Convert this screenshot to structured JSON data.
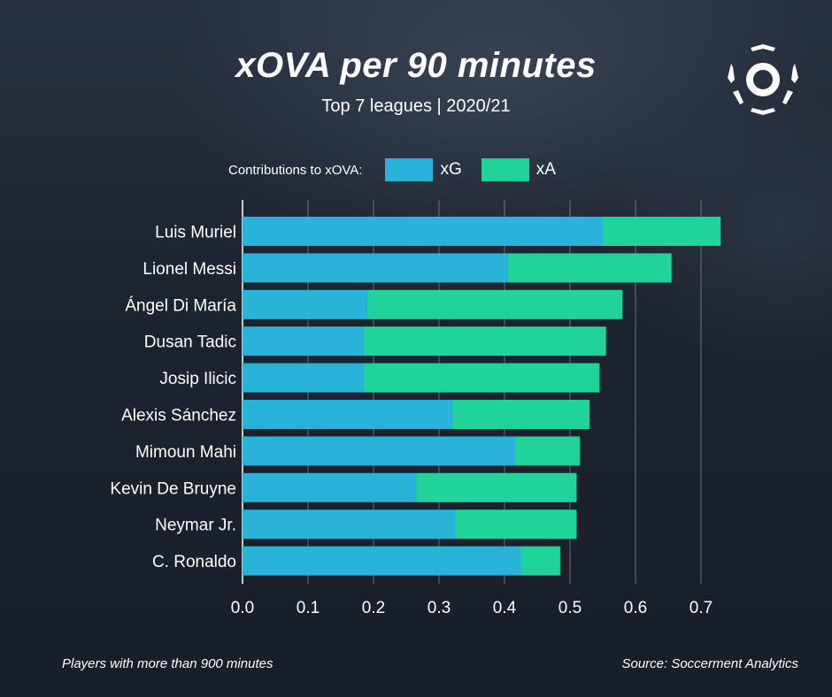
{
  "colors": {
    "xg": "#29b3d9",
    "xa": "#1fd39a",
    "background": "#1b2230",
    "text": "#ffffff",
    "grid": "#8a93a0"
  },
  "header": {
    "title": "xOVA per 90 minutes",
    "subtitle": "Top 7 leagues | 2020/21"
  },
  "legend": {
    "label": "Contributions to xOVA:",
    "items": [
      "xG",
      "xA"
    ]
  },
  "footer": {
    "note": "Players with more than 900 minutes",
    "source": "Source: Soccerment Analytics"
  },
  "icons": {
    "logo": "soccerment-logo"
  },
  "chart_data": {
    "type": "bar",
    "orientation": "horizontal",
    "stacked": true,
    "title": "xOVA per 90 minutes",
    "categories": [
      "Luis Muriel",
      "Lionel Messi",
      "Ángel Di María",
      "Dusan Tadic",
      "Josip Ilicic",
      "Alexis Sánchez",
      "Mimoun Mahi",
      "Kevin De Bruyne",
      "Neymar Jr.",
      "C. Ronaldo"
    ],
    "series": [
      {
        "name": "xG",
        "values": [
          0.55,
          0.405,
          0.19,
          0.185,
          0.185,
          0.32,
          0.415,
          0.265,
          0.325,
          0.425
        ]
      },
      {
        "name": "xA",
        "values": [
          0.18,
          0.25,
          0.39,
          0.37,
          0.36,
          0.21,
          0.1,
          0.245,
          0.185,
          0.06
        ]
      }
    ],
    "xlim": [
      0,
      0.7
    ],
    "xticks": [
      "0.0",
      "0.1",
      "0.2",
      "0.3",
      "0.4",
      "0.5",
      "0.6",
      "0.7"
    ],
    "xtick_values": [
      0,
      0.1,
      0.2,
      0.3,
      0.4,
      0.5,
      0.6,
      0.7
    ],
    "grid": true,
    "legend_position": "top"
  }
}
